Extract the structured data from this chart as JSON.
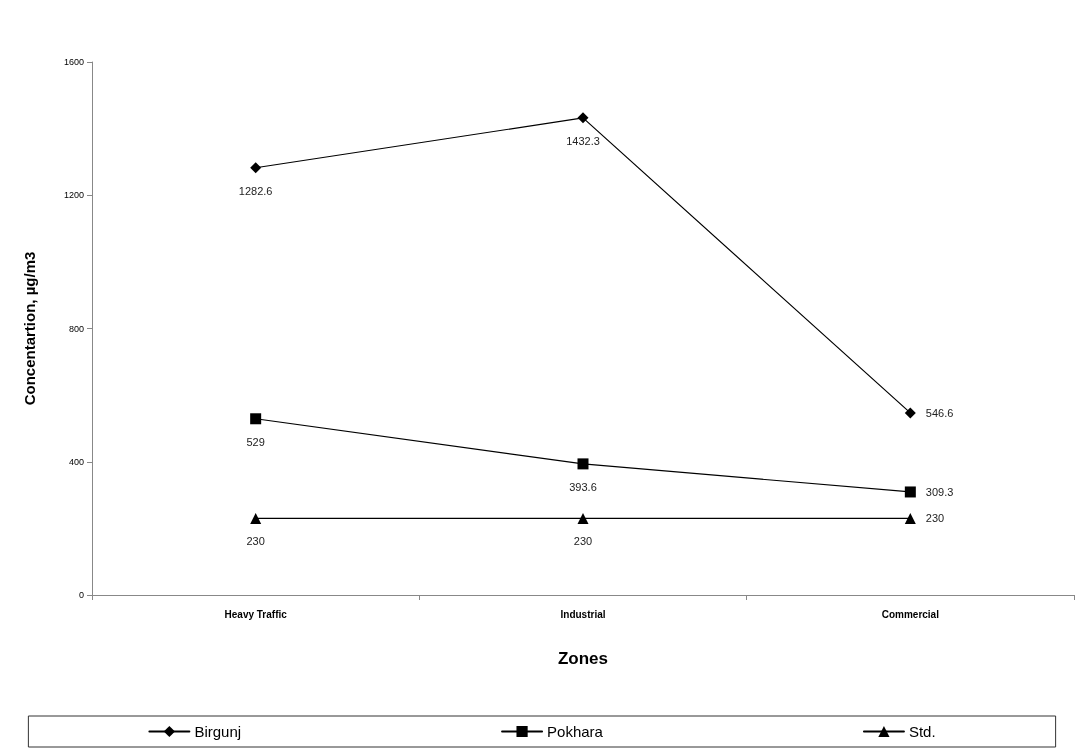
{
  "chart_data": {
    "type": "line",
    "xlabel": "Zones",
    "ylabel": "Concentartion, µg/m3",
    "categories": [
      "Heavy Traffic",
      "Industrial",
      "Commercial"
    ],
    "series": [
      {
        "name": "Birgunj",
        "color": "#000000",
        "marker": "diamond",
        "values": [
          1282.6,
          1432.3,
          546.6
        ]
      },
      {
        "name": "Pokhara",
        "color": "#000000",
        "marker": "square",
        "values": [
          529,
          393.6,
          309.3
        ]
      },
      {
        "name": "Std.",
        "color": "#000000",
        "marker": "triangle",
        "values": [
          230,
          230,
          230
        ]
      }
    ],
    "ylim": [
      0,
      1600
    ],
    "yticks": [
      0,
      400,
      800,
      1200,
      1600
    ],
    "grid": false,
    "legend": "bottom",
    "data_labels": true
  }
}
